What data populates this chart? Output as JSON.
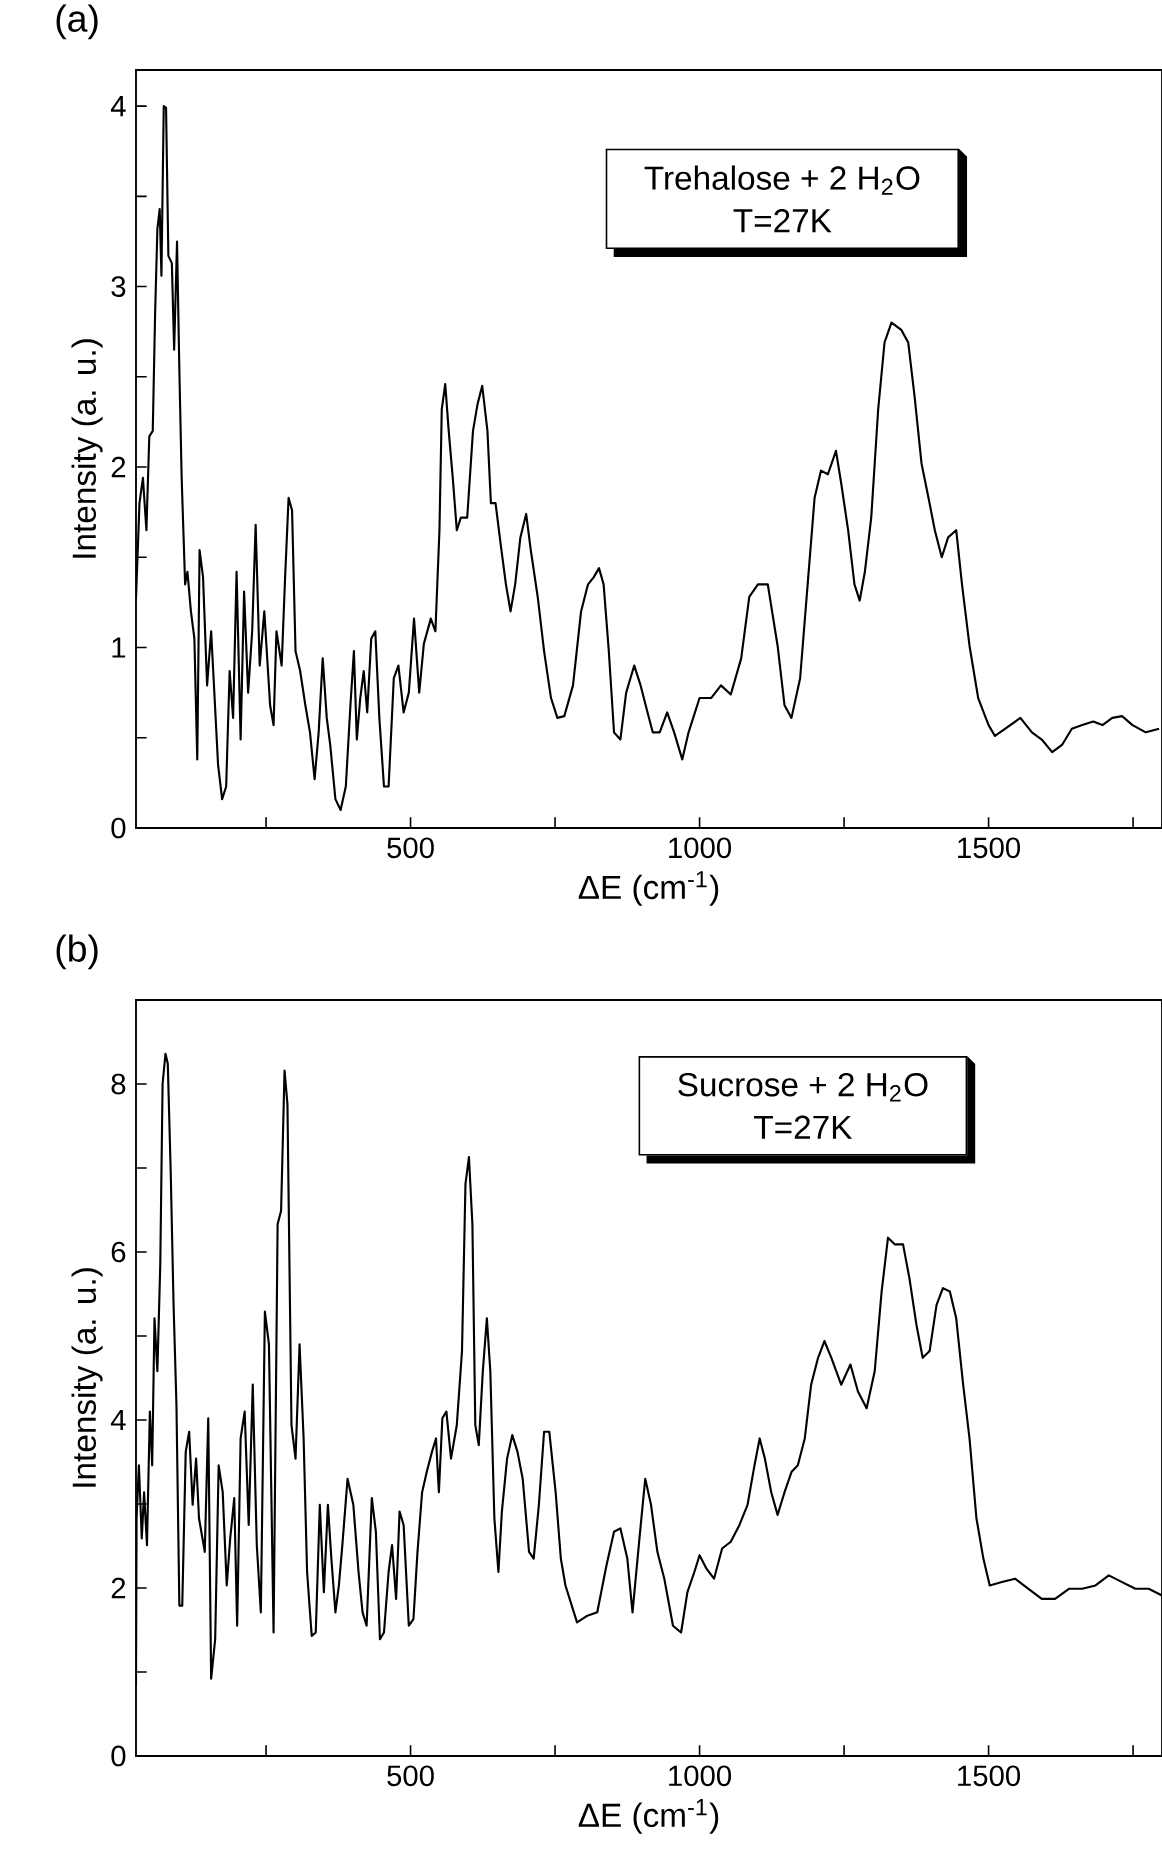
{
  "chart_data": [
    {
      "type": "line",
      "title": "(a)",
      "xlabel": "ΔE (cm$^{-1}$)",
      "ylabel": "Intensity (a. u.)",
      "annotations": [
        "Trehalose + 2 H$_{2}$O",
        "T=27K"
      ],
      "color": "#000000",
      "marker": "none",
      "xlim": [
        25,
        1800
      ],
      "ylim": [
        0,
        4.2
      ],
      "xticks": [
        {
          "value": 250,
          "label": null
        },
        500,
        {
          "value": 750,
          "label": null
        },
        1000,
        {
          "value": 1250,
          "label": null
        },
        1500,
        {
          "value": 1750,
          "label": null
        }
      ],
      "yticks": [
        0,
        {
          "value": 0.5,
          "label": null
        },
        1,
        {
          "value": 1.5,
          "label": null
        },
        2,
        {
          "value": 2.5,
          "label": null
        },
        3,
        {
          "value": 3.5,
          "label": null
        },
        4
      ],
      "x": [
        25,
        31,
        37,
        43,
        48,
        54,
        58,
        62,
        66,
        69,
        73,
        77,
        81,
        87,
        91,
        96,
        100,
        104,
        110,
        114,
        120,
        126,
        131,
        135,
        141,
        148,
        155,
        161,
        167,
        174,
        181,
        187,
        193,
        199,
        206,
        212,
        219,
        226,
        232,
        239,
        247,
        257,
        263,
        268,
        277,
        283,
        289,
        295,
        301,
        309,
        318,
        326,
        334,
        341,
        348,
        355,
        361,
        370,
        379,
        388,
        396,
        402,
        407,
        413,
        419,
        425,
        432,
        439,
        446,
        454,
        462,
        471,
        479,
        488,
        497,
        506,
        515,
        523,
        535,
        543,
        550,
        554,
        560,
        566,
        573,
        580,
        587,
        598,
        608,
        616,
        624,
        633,
        639,
        647,
        656,
        665,
        673,
        681,
        690,
        700,
        708,
        720,
        731,
        743,
        754,
        766,
        781,
        795,
        807,
        817,
        826,
        834,
        843,
        852,
        863,
        873,
        887,
        898,
        910,
        919,
        931,
        944,
        956,
        970,
        981,
        1000,
        1020,
        1037,
        1054,
        1072,
        1086,
        1101,
        1118,
        1135,
        1147,
        1159,
        1174,
        1187,
        1199,
        1210,
        1222,
        1236,
        1245,
        1257,
        1268,
        1277,
        1286,
        1297,
        1309,
        1320,
        1332,
        1349,
        1361,
        1372,
        1384,
        1396,
        1407,
        1419,
        1430,
        1444,
        1454,
        1467,
        1482,
        1500,
        1511,
        1529,
        1555,
        1575,
        1592,
        1610,
        1627,
        1644,
        1662,
        1681,
        1697,
        1714,
        1731,
        1749,
        1772,
        1795
      ],
      "values": [
        1.27,
        1.8,
        1.94,
        1.65,
        2.17,
        2.2,
        2.84,
        3.32,
        3.43,
        3.06,
        4.0,
        3.99,
        3.17,
        3.13,
        2.65,
        3.25,
        2.54,
        1.94,
        1.35,
        1.42,
        1.2,
        1.05,
        0.38,
        1.54,
        1.39,
        0.79,
        1.09,
        0.72,
        0.35,
        0.16,
        0.23,
        0.87,
        0.61,
        1.42,
        0.49,
        1.31,
        0.75,
        1.09,
        1.68,
        0.9,
        1.2,
        0.68,
        0.57,
        1.09,
        0.9,
        1.39,
        1.83,
        1.76,
        0.98,
        0.87,
        0.68,
        0.53,
        0.27,
        0.53,
        0.94,
        0.61,
        0.46,
        0.16,
        0.1,
        0.23,
        0.68,
        0.98,
        0.49,
        0.72,
        0.87,
        0.64,
        1.05,
        1.09,
        0.61,
        0.23,
        0.23,
        0.83,
        0.9,
        0.64,
        0.75,
        1.16,
        0.75,
        1.02,
        1.16,
        1.09,
        1.65,
        2.32,
        2.46,
        2.2,
        1.94,
        1.65,
        1.72,
        1.72,
        2.2,
        2.35,
        2.45,
        2.2,
        1.8,
        1.8,
        1.57,
        1.35,
        1.2,
        1.35,
        1.61,
        1.74,
        1.54,
        1.28,
        0.98,
        0.72,
        0.61,
        0.62,
        0.79,
        1.2,
        1.35,
        1.39,
        1.44,
        1.35,
        0.98,
        0.53,
        0.49,
        0.75,
        0.9,
        0.79,
        0.64,
        0.53,
        0.53,
        0.64,
        0.53,
        0.38,
        0.53,
        0.72,
        0.72,
        0.79,
        0.74,
        0.94,
        1.28,
        1.35,
        1.35,
        1.01,
        0.68,
        0.61,
        0.83,
        1.35,
        1.83,
        1.98,
        1.96,
        2.09,
        1.91,
        1.65,
        1.35,
        1.26,
        1.42,
        1.72,
        2.32,
        2.69,
        2.8,
        2.76,
        2.69,
        2.39,
        2.02,
        1.83,
        1.65,
        1.5,
        1.61,
        1.65,
        1.35,
        1.01,
        0.72,
        0.57,
        0.51,
        0.55,
        0.61,
        0.53,
        0.49,
        0.42,
        0.46,
        0.55,
        0.57,
        0.59,
        0.57,
        0.61,
        0.62,
        0.57,
        0.53,
        0.55
      ]
    },
    {
      "type": "line",
      "title": "(b)",
      "xlabel": "ΔE (cm$^{-1}$)",
      "ylabel": "Intensity (a. u.)",
      "annotations": [
        "Sucrose + 2 H$_{2}$O",
        "T=27K"
      ],
      "color": "#000000",
      "marker": "none",
      "xlim": [
        25,
        1800
      ],
      "ylim": [
        0,
        9
      ],
      "xticks": [
        {
          "value": 250,
          "label": null
        },
        500,
        {
          "value": 750,
          "label": null
        },
        1000,
        {
          "value": 1250,
          "label": null
        },
        1500,
        {
          "value": 1750,
          "label": null
        }
      ],
      "yticks": [
        0,
        {
          "value": 1,
          "label": null
        },
        2,
        {
          "value": 3,
          "label": null
        },
        4,
        {
          "value": 5,
          "label": null
        },
        6,
        {
          "value": 7,
          "label": null
        },
        8
      ],
      "x": [
        25,
        26,
        30,
        35,
        39,
        44,
        49,
        53,
        57,
        62,
        67,
        71,
        76,
        80,
        85,
        90,
        95,
        100,
        105,
        111,
        117,
        123,
        129,
        134,
        144,
        150,
        155,
        162,
        168,
        175,
        182,
        188,
        195,
        200,
        206,
        213,
        220,
        227,
        234,
        241,
        248,
        255,
        263,
        270,
        276,
        282,
        287,
        294,
        301,
        308,
        315,
        321,
        329,
        336,
        343,
        350,
        357,
        363,
        370,
        376,
        382,
        391,
        401,
        410,
        417,
        424,
        433,
        440,
        447,
        454,
        462,
        468,
        475,
        481,
        488,
        497,
        505,
        512,
        520,
        528,
        537,
        544,
        549,
        555,
        562,
        570,
        580,
        589,
        595,
        601,
        607,
        612,
        618,
        625,
        632,
        638,
        645,
        652,
        658,
        667,
        676,
        685,
        694,
        705,
        713,
        722,
        731,
        740,
        751,
        760,
        768,
        788,
        806,
        823,
        839,
        852,
        863,
        875,
        884,
        896,
        906,
        916,
        927,
        939,
        954,
        968,
        979,
        991,
        1000,
        1012,
        1025,
        1039,
        1054,
        1069,
        1083,
        1095,
        1104,
        1113,
        1124,
        1135,
        1147,
        1159,
        1170,
        1182,
        1193,
        1205,
        1216,
        1228,
        1245,
        1261,
        1274,
        1289,
        1303,
        1315,
        1326,
        1338,
        1352,
        1363,
        1375,
        1386,
        1398,
        1410,
        1421,
        1433,
        1444,
        1456,
        1467,
        1479,
        1491,
        1502,
        1523,
        1546,
        1569,
        1592,
        1615,
        1639,
        1662,
        1685,
        1708,
        1731,
        1754,
        1777,
        1800
      ],
      "values": [
        0.84,
        2.83,
        3.46,
        2.59,
        3.14,
        2.51,
        4.1,
        3.46,
        5.21,
        4.58,
        5.85,
        8.0,
        8.36,
        8.24,
        6.97,
        5.37,
        4.18,
        1.79,
        1.79,
        3.62,
        3.86,
        2.99,
        3.54,
        2.83,
        2.43,
        4.02,
        0.92,
        1.39,
        3.46,
        3.14,
        2.03,
        2.59,
        3.07,
        1.55,
        3.78,
        4.1,
        2.75,
        4.42,
        2.51,
        1.71,
        5.29,
        4.9,
        1.47,
        6.33,
        6.49,
        8.16,
        7.76,
        3.94,
        3.54,
        4.9,
        3.78,
        2.19,
        1.43,
        1.47,
        2.99,
        1.95,
        2.99,
        2.35,
        1.71,
        2.03,
        2.51,
        3.3,
        2.99,
        2.19,
        1.71,
        1.55,
        3.07,
        2.67,
        1.39,
        1.47,
        2.19,
        2.51,
        1.87,
        2.91,
        2.75,
        1.55,
        1.63,
        2.43,
        3.14,
        3.38,
        3.62,
        3.78,
        3.14,
        4.02,
        4.1,
        3.54,
        3.94,
        4.82,
        6.81,
        7.13,
        6.33,
        3.94,
        3.7,
        4.58,
        5.21,
        4.58,
        2.83,
        2.19,
        2.91,
        3.54,
        3.82,
        3.62,
        3.3,
        2.43,
        2.35,
        2.99,
        3.86,
        3.86,
        3.14,
        2.35,
        2.03,
        1.59,
        1.67,
        1.71,
        2.27,
        2.67,
        2.71,
        2.35,
        1.71,
        2.59,
        3.3,
        2.99,
        2.43,
        2.11,
        1.55,
        1.47,
        1.95,
        2.19,
        2.39,
        2.23,
        2.11,
        2.47,
        2.55,
        2.75,
        2.99,
        3.46,
        3.78,
        3.54,
        3.14,
        2.87,
        3.14,
        3.38,
        3.46,
        3.78,
        4.42,
        4.74,
        4.94,
        4.74,
        4.42,
        4.66,
        4.34,
        4.14,
        4.58,
        5.53,
        6.17,
        6.09,
        6.09,
        5.69,
        5.14,
        4.74,
        4.82,
        5.37,
        5.57,
        5.53,
        5.21,
        4.42,
        3.78,
        2.83,
        2.35,
        2.03,
        2.07,
        2.11,
        1.99,
        1.87,
        1.87,
        1.99,
        1.99,
        2.03,
        2.15,
        2.07,
        1.99,
        1.99,
        1.91
      ]
    }
  ]
}
